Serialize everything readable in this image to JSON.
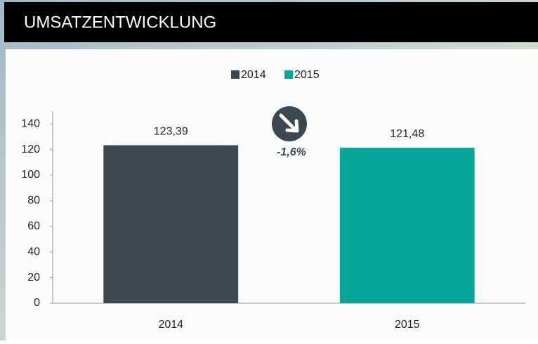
{
  "chart_data": {
    "type": "bar",
    "title": "UMSATZENTWICKLUNG",
    "categories": [
      "2014",
      "2015"
    ],
    "values": [
      123.39,
      121.48
    ],
    "value_labels": [
      "123,39",
      "121,48"
    ],
    "colors": [
      "#3d4750",
      "#06a59a"
    ],
    "ylim": [
      0,
      150
    ],
    "yticks": [
      0,
      20,
      40,
      60,
      80,
      100,
      120,
      140
    ],
    "legend": "top",
    "annotation": "-1,6%"
  }
}
